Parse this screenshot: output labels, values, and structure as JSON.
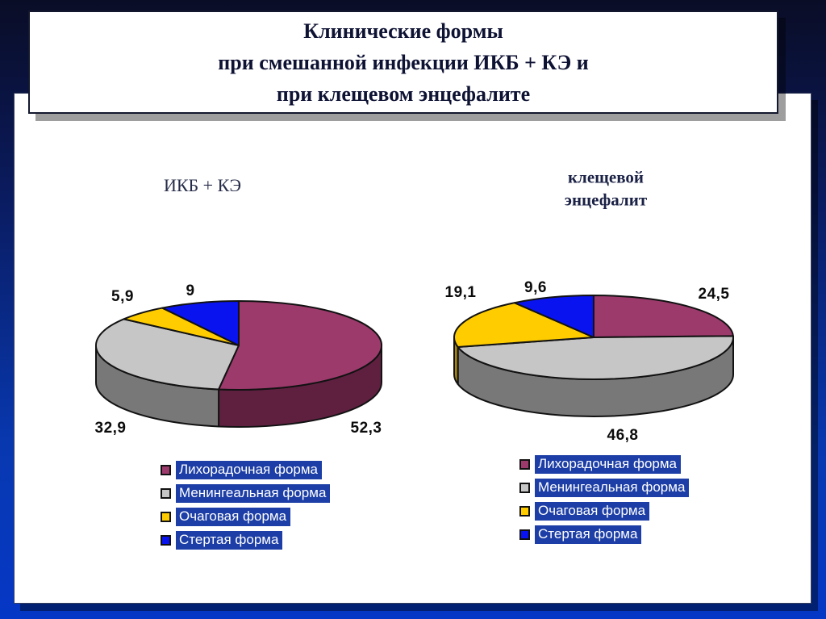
{
  "slide": {
    "title": "Клинические формы\nпри смешанной инфекции ИКБ + КЭ и\nпри клещевом энцефалите"
  },
  "legend": {
    "highlight_color": "#1C3EA6",
    "text_color": "#FFFFFF"
  },
  "chart_data": [
    {
      "type": "pie",
      "title": "ИКБ + КЭ",
      "categories": [
        "Лихорадочная форма",
        "Менингеальная форма",
        "Очаговая форма",
        "Стертая форма"
      ],
      "values": [
        52.3,
        32.9,
        5.9,
        9
      ],
      "value_labels": [
        "52,3",
        "32,9",
        "5,9",
        "9"
      ],
      "colors": [
        "#9C3A6C",
        "#C6C6C6",
        "#FFCC00",
        "#0813F0"
      ],
      "side_colors": [
        "#5F2040",
        "#787878",
        "#A8860B",
        "#000D99"
      ],
      "start_angle_deg": 0,
      "direction": "clockwise",
      "effect": "3d",
      "legend_position": "bottom"
    },
    {
      "type": "pie",
      "title": "клещевой\nэнцефалит",
      "categories": [
        "Лихорадочная форма",
        "Менингеальная форма",
        "Очаговая форма",
        "Стертая форма"
      ],
      "values": [
        24.5,
        46.8,
        19.1,
        9.6
      ],
      "value_labels": [
        "24,5",
        "46,8",
        "19,1",
        "9,6"
      ],
      "colors": [
        "#9C3A6C",
        "#C6C6C6",
        "#FFCC00",
        "#0813F0"
      ],
      "side_colors": [
        "#5F2040",
        "#787878",
        "#A8860B",
        "#000D99"
      ],
      "start_angle_deg": 0,
      "direction": "clockwise",
      "effect": "3d",
      "legend_position": "bottom"
    }
  ]
}
